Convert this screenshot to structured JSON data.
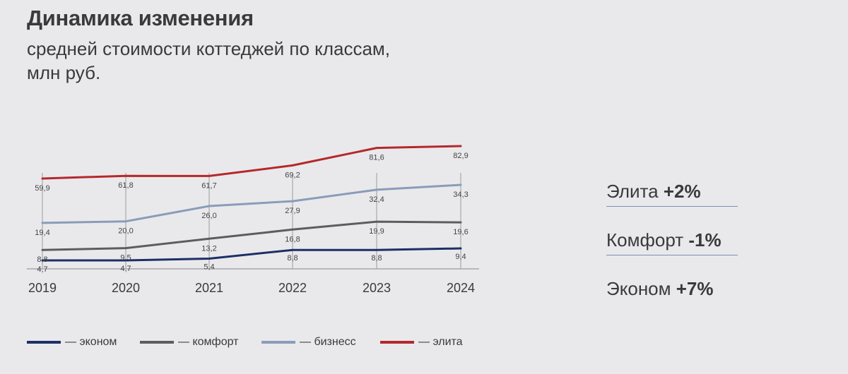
{
  "header": {
    "title": "Динамика изменения",
    "subtitle": "средней стоимости коттеджей по классам, млн руб."
  },
  "chart_data": {
    "type": "line",
    "categories": [
      "2019",
      "2020",
      "2021",
      "2022",
      "2023",
      "2024"
    ],
    "series": [
      {
        "name": "— эконом",
        "color": "#1c2f66",
        "values": [
          4.7,
          4.7,
          5.4,
          8.8,
          8.8,
          9.4
        ],
        "labels": [
          "4,7",
          "4,7",
          "5,4",
          "8,8",
          "8,8",
          "9,4"
        ]
      },
      {
        "name": "— комфорт",
        "color": "#5d5d5f",
        "values": [
          8.8,
          9.5,
          13.2,
          16.8,
          19.9,
          19.6
        ],
        "labels": [
          "8,8",
          "9,5",
          "13,2",
          "16,8",
          "19,9",
          "19,6"
        ]
      },
      {
        "name": "— бизнесс",
        "color": "#8a9cb9",
        "values": [
          19.4,
          20.0,
          26.0,
          27.9,
          32.4,
          34.3
        ],
        "labels": [
          "19,4",
          "20,0",
          "26,0",
          "27,9",
          "32,4",
          "34,3"
        ]
      },
      {
        "name": "— элита",
        "color": "#b5282b",
        "values": [
          59.9,
          61.8,
          61.7,
          69.2,
          81.6,
          82.9
        ],
        "labels": [
          "59,9",
          "61,8",
          "61,7",
          "69,2",
          "81,6",
          "82,9"
        ]
      }
    ],
    "grid": "vertical",
    "legend_position": "bottom"
  },
  "stats": [
    {
      "name": "Элита",
      "change": "+2%"
    },
    {
      "name": "Комфорт",
      "change": "-1%"
    },
    {
      "name": "Эконом",
      "change": "+7%"
    }
  ]
}
